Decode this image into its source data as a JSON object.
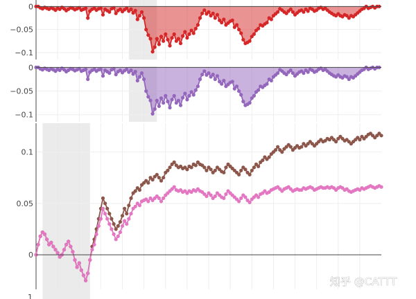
{
  "watermark": "知乎 @CATTT",
  "bottom_axis_partial_label": "1",
  "colors": {
    "drawdown_a": "#d62728",
    "drawdown_b": "#9467bd",
    "cumulative_a": "#8c564b",
    "cumulative_b": "#e377c2",
    "shade": "#e6e6e6",
    "grid": "#eeeeee",
    "axis": "#444444"
  },
  "chart_data": [
    {
      "type": "area",
      "panel": "drawdown-top",
      "x_range": [
        0,
        160
      ],
      "ylim": [
        -0.115,
        0.002
      ],
      "yticks": [
        0,
        -0.05,
        -0.1
      ],
      "ytick_labels": [
        "0",
        "−0.05",
        "−0.1"
      ],
      "shaded_x": [
        43,
        56
      ],
      "series": [
        {
          "color": "#d62728",
          "values": [
            0,
            0,
            -0.003,
            -0.005,
            -0.002,
            -0.004,
            -0.006,
            -0.003,
            -0.005,
            -0.008,
            -0.004,
            -0.006,
            -0.002,
            -0.005,
            -0.009,
            -0.006,
            -0.003,
            -0.004,
            -0.007,
            -0.005,
            -0.003,
            -0.008,
            -0.006,
            -0.004,
            -0.025,
            -0.01,
            -0.006,
            -0.004,
            -0.008,
            -0.005,
            -0.004,
            -0.018,
            -0.006,
            -0.009,
            -0.012,
            -0.005,
            -0.003,
            -0.015,
            -0.009,
            -0.006,
            -0.011,
            -0.007,
            -0.004,
            -0.01,
            -0.006,
            -0.014,
            -0.009,
            -0.028,
            -0.02,
            -0.012,
            -0.025,
            -0.05,
            -0.062,
            -0.07,
            -0.098,
            -0.088,
            -0.07,
            -0.082,
            -0.065,
            -0.075,
            -0.06,
            -0.072,
            -0.085,
            -0.068,
            -0.06,
            -0.075,
            -0.07,
            -0.08,
            -0.064,
            -0.055,
            -0.068,
            -0.06,
            -0.052,
            -0.058,
            -0.048,
            -0.04,
            -0.025,
            -0.015,
            -0.008,
            -0.016,
            -0.012,
            -0.02,
            -0.015,
            -0.025,
            -0.018,
            -0.03,
            -0.035,
            -0.028,
            -0.04,
            -0.036,
            -0.032,
            -0.03,
            -0.045,
            -0.04,
            -0.05,
            -0.058,
            -0.072,
            -0.08,
            -0.078,
            -0.075,
            -0.065,
            -0.06,
            -0.052,
            -0.048,
            -0.04,
            -0.042,
            -0.038,
            -0.035,
            -0.025,
            -0.028,
            -0.02,
            -0.016,
            -0.012,
            -0.005,
            -0.008,
            -0.012,
            -0.015,
            -0.01,
            -0.006,
            -0.012,
            -0.018,
            -0.014,
            -0.01,
            -0.008,
            -0.012,
            -0.006,
            -0.01,
            -0.004,
            -0.006,
            -0.01,
            -0.008,
            -0.004,
            -0.002,
            -0.006,
            -0.004,
            -0.008,
            -0.012,
            -0.015,
            -0.018,
            -0.02,
            -0.016,
            -0.02,
            -0.022,
            -0.018,
            -0.02,
            -0.025,
            -0.02,
            -0.022,
            -0.018,
            -0.014,
            -0.01,
            -0.006,
            -0.004,
            0,
            -0.004,
            -0.002,
            0,
            -0.003,
            0,
            0
          ]
        }
      ]
    },
    {
      "type": "area",
      "panel": "drawdown-bottom",
      "x_range": [
        0,
        160
      ],
      "ylim": [
        -0.115,
        0.002
      ],
      "yticks": [
        0,
        -0.05,
        -0.1
      ],
      "ytick_labels": [
        "0",
        "−0.05",
        "−0.1"
      ],
      "shaded_x": [
        43,
        56
      ],
      "series": [
        {
          "color": "#9467bd",
          "values": [
            0,
            0,
            -0.003,
            -0.005,
            -0.002,
            -0.004,
            -0.006,
            -0.003,
            -0.005,
            -0.008,
            -0.004,
            -0.006,
            -0.002,
            -0.005,
            -0.009,
            -0.006,
            -0.003,
            -0.004,
            -0.007,
            -0.005,
            -0.003,
            -0.008,
            -0.006,
            -0.004,
            -0.025,
            -0.01,
            -0.006,
            -0.004,
            -0.008,
            -0.005,
            -0.004,
            -0.018,
            -0.006,
            -0.009,
            -0.012,
            -0.005,
            -0.003,
            -0.015,
            -0.009,
            -0.006,
            -0.011,
            -0.007,
            -0.004,
            -0.01,
            -0.006,
            -0.014,
            -0.009,
            -0.028,
            -0.02,
            -0.012,
            -0.025,
            -0.05,
            -0.062,
            -0.07,
            -0.098,
            -0.088,
            -0.07,
            -0.082,
            -0.065,
            -0.075,
            -0.06,
            -0.072,
            -0.085,
            -0.068,
            -0.06,
            -0.075,
            -0.07,
            -0.08,
            -0.064,
            -0.055,
            -0.068,
            -0.06,
            -0.052,
            -0.058,
            -0.048,
            -0.04,
            -0.025,
            -0.015,
            -0.008,
            -0.016,
            -0.012,
            -0.02,
            -0.015,
            -0.025,
            -0.018,
            -0.03,
            -0.035,
            -0.028,
            -0.04,
            -0.036,
            -0.032,
            -0.03,
            -0.045,
            -0.04,
            -0.05,
            -0.058,
            -0.072,
            -0.08,
            -0.078,
            -0.075,
            -0.065,
            -0.06,
            -0.052,
            -0.048,
            -0.04,
            -0.042,
            -0.038,
            -0.035,
            -0.025,
            -0.028,
            -0.02,
            -0.016,
            -0.012,
            -0.005,
            -0.008,
            -0.012,
            -0.015,
            -0.01,
            -0.006,
            -0.012,
            -0.018,
            -0.014,
            -0.01,
            -0.008,
            -0.012,
            -0.006,
            -0.01,
            -0.004,
            -0.006,
            -0.01,
            -0.008,
            -0.004,
            -0.002,
            -0.006,
            -0.004,
            -0.008,
            -0.012,
            -0.015,
            -0.018,
            -0.02,
            -0.016,
            -0.02,
            -0.022,
            -0.018,
            -0.02,
            -0.025,
            -0.02,
            -0.022,
            -0.018,
            -0.014,
            -0.01,
            -0.006,
            -0.004,
            0,
            -0.004,
            -0.002,
            0,
            -0.003,
            0,
            0
          ]
        }
      ]
    },
    {
      "type": "line",
      "panel": "cumulative",
      "x_range": [
        0,
        160
      ],
      "ylim": [
        -0.043,
        0.128
      ],
      "yticks": [
        0,
        0.05,
        0.1
      ],
      "ytick_labels": [
        "0",
        "0.05",
        "0.1"
      ],
      "shaded_x": [
        3,
        25
      ],
      "series": [
        {
          "color": "#8c564b",
          "values": [
            0,
            0.01,
            0.018,
            0.022,
            0.02,
            0.015,
            0.01,
            0.012,
            0.008,
            0.005,
            0.002,
            -0.002,
            0,
            0.005,
            0.01,
            0.013,
            0.008,
            0.003,
            -0.005,
            -0.012,
            -0.008,
            -0.015,
            -0.02,
            -0.025,
            -0.018,
            -0.005,
            0.008,
            0.015,
            0.025,
            0.035,
            0.045,
            0.055,
            0.05,
            0.045,
            0.04,
            0.035,
            0.03,
            0.025,
            0.028,
            0.032,
            0.038,
            0.045,
            0.04,
            0.048,
            0.055,
            0.06,
            0.062,
            0.065,
            0.063,
            0.068,
            0.07,
            0.072,
            0.07,
            0.075,
            0.073,
            0.076,
            0.078,
            0.075,
            0.072,
            0.075,
            0.08,
            0.082,
            0.085,
            0.088,
            0.09,
            0.087,
            0.085,
            0.086,
            0.084,
            0.085,
            0.083,
            0.086,
            0.085,
            0.088,
            0.087,
            0.09,
            0.088,
            0.087,
            0.085,
            0.082,
            0.085,
            0.083,
            0.08,
            0.082,
            0.085,
            0.083,
            0.081,
            0.08,
            0.085,
            0.088,
            0.086,
            0.084,
            0.082,
            0.08,
            0.078,
            0.082,
            0.085,
            0.083,
            0.08,
            0.078,
            0.082,
            0.085,
            0.088,
            0.086,
            0.09,
            0.092,
            0.095,
            0.093,
            0.095,
            0.098,
            0.1,
            0.102,
            0.105,
            0.102,
            0.1,
            0.103,
            0.105,
            0.107,
            0.105,
            0.102,
            0.104,
            0.106,
            0.104,
            0.105,
            0.108,
            0.106,
            0.108,
            0.11,
            0.108,
            0.106,
            0.108,
            0.11,
            0.112,
            0.11,
            0.111,
            0.113,
            0.112,
            0.114,
            0.112,
            0.11,
            0.113,
            0.115,
            0.113,
            0.111,
            0.112,
            0.11,
            0.108,
            0.11,
            0.112,
            0.114,
            0.112,
            0.115,
            0.113,
            0.115,
            0.117,
            0.118,
            0.116,
            0.114,
            0.116,
            0.118,
            0.116
          ]
        },
        {
          "color": "#e377c2",
          "values": [
            0,
            0.01,
            0.018,
            0.022,
            0.02,
            0.015,
            0.01,
            0.012,
            0.008,
            0.005,
            0.002,
            -0.002,
            0,
            0.005,
            0.01,
            0.013,
            0.008,
            0.003,
            -0.005,
            -0.012,
            -0.008,
            -0.015,
            -0.02,
            -0.025,
            -0.018,
            -0.005,
            0.005,
            0.01,
            0.02,
            0.028,
            0.035,
            0.045,
            0.04,
            0.035,
            0.03,
            0.025,
            0.02,
            0.015,
            0.018,
            0.022,
            0.028,
            0.033,
            0.03,
            0.035,
            0.04,
            0.045,
            0.047,
            0.05,
            0.048,
            0.052,
            0.053,
            0.054,
            0.052,
            0.055,
            0.053,
            0.055,
            0.057,
            0.055,
            0.052,
            0.055,
            0.058,
            0.06,
            0.062,
            0.064,
            0.066,
            0.063,
            0.062,
            0.063,
            0.061,
            0.062,
            0.06,
            0.062,
            0.061,
            0.063,
            0.062,
            0.064,
            0.062,
            0.061,
            0.059,
            0.057,
            0.06,
            0.058,
            0.055,
            0.057,
            0.06,
            0.058,
            0.056,
            0.055,
            0.059,
            0.062,
            0.06,
            0.058,
            0.056,
            0.054,
            0.052,
            0.055,
            0.058,
            0.056,
            0.053,
            0.051,
            0.054,
            0.056,
            0.058,
            0.056,
            0.059,
            0.06,
            0.062,
            0.06,
            0.061,
            0.063,
            0.064,
            0.065,
            0.066,
            0.064,
            0.062,
            0.064,
            0.065,
            0.066,
            0.064,
            0.062,
            0.063,
            0.064,
            0.063,
            0.063,
            0.065,
            0.064,
            0.065,
            0.066,
            0.065,
            0.063,
            0.064,
            0.065,
            0.066,
            0.065,
            0.065,
            0.066,
            0.065,
            0.066,
            0.065,
            0.063,
            0.065,
            0.066,
            0.065,
            0.063,
            0.064,
            0.062,
            0.061,
            0.062,
            0.063,
            0.064,
            0.063,
            0.065,
            0.064,
            0.065,
            0.066,
            0.067,
            0.066,
            0.065,
            0.066,
            0.067,
            0.066
          ]
        }
      ]
    }
  ]
}
